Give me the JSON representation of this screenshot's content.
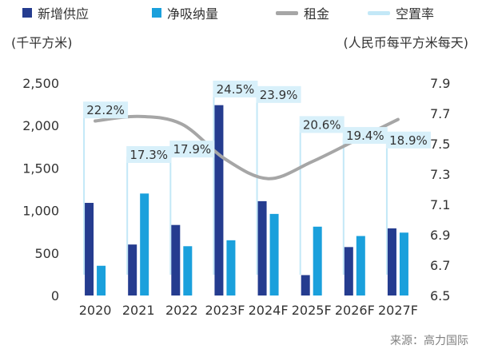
{
  "legend": {
    "new_supply": "新增供应",
    "net_absorption": "净吸纳量",
    "rent": "租金",
    "vacancy": "空置率"
  },
  "units": {
    "left": "(千平方米)",
    "right": "(人民币每平方米每天)"
  },
  "source": "来源：高力国际",
  "colors": {
    "new_supply": "#253c8f",
    "net_absorption": "#1aa0dc",
    "rent": "#a6a6a6",
    "vacancy_line": "#c3e8f7",
    "vacancy_label_bg": "#d8f0fa",
    "axis_text": "#333333"
  },
  "chart_data": {
    "type": "bar",
    "categories": [
      "2020",
      "2021",
      "2022",
      "2023F",
      "2024F",
      "2025F",
      "2026F",
      "2027F"
    ],
    "series": [
      {
        "name": "新增供应",
        "axis": "left",
        "values": [
          1090,
          600,
          830,
          2240,
          1110,
          240,
          570,
          790
        ]
      },
      {
        "name": "净吸纳量",
        "axis": "left",
        "values": [
          350,
          1200,
          580,
          650,
          960,
          810,
          700,
          740
        ]
      },
      {
        "name": "租金",
        "type": "line",
        "axis": "right",
        "values": [
          7.65,
          7.68,
          7.63,
          7.4,
          7.27,
          7.38,
          7.52,
          7.66
        ]
      },
      {
        "name": "空置率",
        "type": "label",
        "values": [
          "22.2%",
          "17.3%",
          "17.9%",
          "24.5%",
          "23.9%",
          "20.6%",
          "19.4%",
          "18.9%"
        ]
      }
    ],
    "left_axis": {
      "ticks": [
        "0",
        "500",
        "1,000",
        "1,500",
        "2,000",
        "2,500"
      ],
      "ylim": [
        0,
        2500
      ]
    },
    "right_axis": {
      "ticks": [
        "6.5",
        "6.7",
        "6.9",
        "7.1",
        "7.3",
        "7.5",
        "7.7",
        "7.9"
      ],
      "ylim": [
        6.5,
        7.9
      ]
    },
    "vacancy_marker_top_rate": [
      22.2,
      17.3,
      17.9,
      24.5,
      23.9,
      20.6,
      19.4,
      18.9
    ],
    "grid": false,
    "legend_position": "top"
  }
}
